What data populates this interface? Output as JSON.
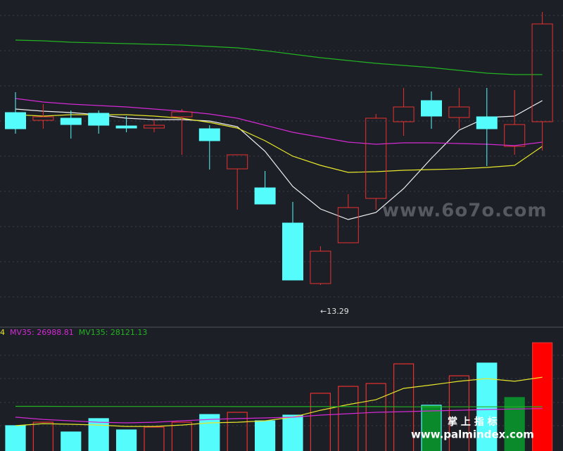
{
  "chart_data": [
    {
      "type": "candlestick",
      "ylim": [
        12.09,
        21.39
      ],
      "up_color": "#e8312f",
      "down_color": "#54fcfc",
      "open": [
        18.19,
        17.97,
        18.03,
        18.17,
        17.81,
        17.75,
        18.07,
        17.73,
        16.59,
        16.05,
        15.05,
        13.33,
        14.49,
        15.75,
        17.93,
        18.53,
        18.05,
        18.07,
        17.23,
        17.93
      ],
      "high": [
        18.77,
        18.43,
        18.25,
        18.25,
        18.09,
        17.99,
        18.29,
        17.83,
        16.99,
        16.53,
        15.65,
        14.39,
        15.87,
        18.15,
        18.89,
        18.79,
        18.89,
        18.89,
        18.83,
        21.05
      ],
      "low": [
        17.59,
        17.73,
        17.45,
        17.59,
        17.63,
        17.63,
        16.99,
        16.57,
        15.43,
        15.59,
        13.43,
        13.29,
        14.49,
        15.43,
        17.53,
        17.73,
        17.73,
        16.67,
        16.99,
        17.11
      ],
      "close": [
        17.73,
        18.07,
        17.85,
        17.83,
        17.75,
        17.83,
        18.21,
        17.39,
        16.99,
        15.59,
        13.43,
        14.25,
        15.49,
        18.03,
        18.35,
        18.09,
        18.35,
        17.73,
        17.85,
        20.71
      ],
      "series": [
        {
          "color": "#f0f0f0",
          "values": [
            18.29,
            18.23,
            18.19,
            18.13,
            18.03,
            17.99,
            17.99,
            17.95,
            17.79,
            17.09,
            16.09,
            15.45,
            15.15,
            15.35,
            16.03,
            16.89,
            17.69,
            18.05,
            18.09,
            18.53
          ]
        },
        {
          "color": "#e6e62a",
          "values": [
            18.13,
            18.09,
            18.13,
            18.13,
            18.13,
            18.09,
            18.03,
            17.91,
            17.75,
            17.39,
            16.95,
            16.69,
            16.49,
            16.51,
            16.55,
            16.57,
            16.59,
            16.63,
            16.69,
            17.23
          ]
        },
        {
          "color": "#d42ad4",
          "values": [
            18.59,
            18.49,
            18.43,
            18.39,
            18.35,
            18.29,
            18.23,
            18.15,
            18.03,
            17.83,
            17.63,
            17.49,
            17.35,
            17.29,
            17.33,
            17.33,
            17.31,
            17.29,
            17.25,
            17.35
          ]
        },
        {
          "color": "#22b422",
          "values": [
            20.25,
            20.23,
            20.19,
            20.17,
            20.15,
            20.13,
            20.11,
            20.07,
            20.03,
            19.95,
            19.85,
            19.75,
            19.67,
            19.59,
            19.53,
            19.47,
            19.39,
            19.31,
            19.27,
            19.27
          ]
        }
      ],
      "annotation": "←13.29",
      "watermark": "www.6o7o.com"
    },
    {
      "type": "bar",
      "ylim": [
        0,
        72000
      ],
      "values": [
        16100,
        18300,
        12100,
        20600,
        13400,
        15200,
        18300,
        23200,
        24600,
        19200,
        22800,
        36700,
        41100,
        42900,
        55400,
        29100,
        47800,
        55900,
        34000,
        68800
      ],
      "fills": [
        "#54fcfc",
        "none",
        "#54fcfc",
        "#54fcfc",
        "#54fcfc",
        "none",
        "none",
        "#54fcfc",
        "none",
        "#54fcfc",
        "#54fcfc",
        "none",
        "none",
        "none",
        "none",
        "#0a8a2a",
        "none",
        "#54fcfc",
        "#0a8a2a",
        "#ff0000"
      ],
      "strokes": [
        "#54fcfc",
        "#e8312f",
        "#54fcfc",
        "#54fcfc",
        "#54fcfc",
        "#e8312f",
        "#e8312f",
        "#54fcfc",
        "#e8312f",
        "#54fcfc",
        "#54fcfc",
        "#e8312f",
        "#e8312f",
        "#e8312f",
        "#e8312f",
        "#54fcfc",
        "#e8312f",
        "#54fcfc",
        "#0a8a2a",
        "#e8312f"
      ],
      "series": [
        {
          "color": "#e6e62a",
          "values": [
            16100,
            17400,
            17000,
            16500,
            15600,
            15600,
            16500,
            17900,
            18300,
            19200,
            21500,
            25900,
            29500,
            32600,
            39800,
            42000,
            44300,
            46000,
            44300,
            46900
          ]
        },
        {
          "color": "#d42ad4",
          "values": [
            21500,
            20100,
            19200,
            18300,
            17900,
            18300,
            19200,
            20100,
            20600,
            21000,
            21500,
            22800,
            23700,
            24600,
            25000,
            25500,
            25900,
            26400,
            26700,
            26988.81
          ]
        },
        {
          "color": "#22b422",
          "values": [
            28400,
            28400,
            28300,
            28300,
            28300,
            28300,
            28300,
            28300,
            28200,
            28200,
            28200,
            28200,
            28200,
            28200,
            28100,
            28100,
            28100,
            28100,
            28100,
            28121.13
          ]
        }
      ],
      "legend": [
        {
          "label": "4",
          "color": "#e6e62a"
        },
        {
          "label": "MV35: 26988.81",
          "color": "#d42ad4"
        },
        {
          "label": "MV135: 28121.13",
          "color": "#22b422"
        }
      ],
      "watermark_cn": "掌 上 指 标",
      "watermark": "www.palmindex.com"
    }
  ]
}
